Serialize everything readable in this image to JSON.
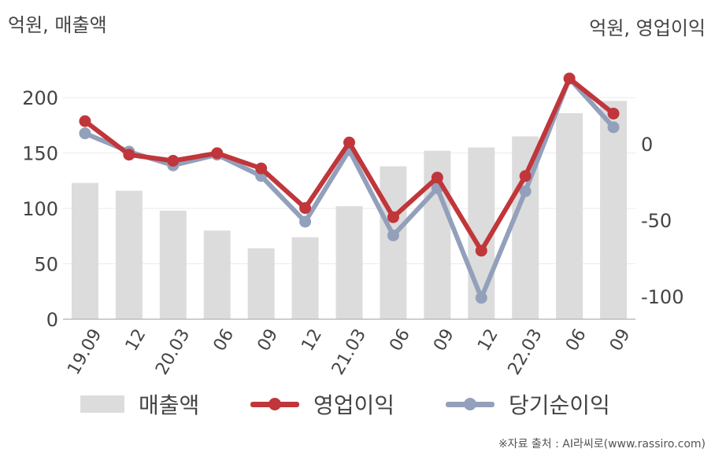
{
  "left_unit": "억원, 매출액",
  "right_unit": "억원, 영업이익",
  "source": "※자료 출처 : AI라씨로(www.rassiro.com)",
  "colors": {
    "bar": "#dcdcdc",
    "operating": "#c0363a",
    "net": "#93a0bb"
  },
  "chart_data": {
    "type": "bar",
    "categories": [
      "19.09",
      "12",
      "20.03",
      "06",
      "09",
      "12",
      "21.03",
      "06",
      "09",
      "12",
      "22.03",
      "06",
      "09"
    ],
    "y_left": {
      "ylim": [
        0,
        220
      ],
      "ticks": [
        0,
        50,
        100,
        150,
        200
      ]
    },
    "y_right": {
      "ylim": [
        -115,
        45
      ],
      "ticks": [
        0,
        -50,
        -100
      ]
    },
    "grid": true,
    "legend_position": "bottom",
    "series": [
      {
        "name": "매출액",
        "type": "bar",
        "axis": "left",
        "values": [
          123,
          116,
          98,
          80,
          64,
          74,
          102,
          138,
          152,
          155,
          165,
          186,
          197
        ]
      },
      {
        "name": "영업이익",
        "type": "line",
        "axis": "right",
        "values": [
          15,
          -7,
          -11,
          -6,
          -16,
          -42,
          1,
          -48,
          -22,
          -70,
          -21,
          43,
          20
        ]
      },
      {
        "name": "당기순이익",
        "type": "line",
        "axis": "right",
        "values": [
          7,
          -5,
          -14,
          -7,
          -21,
          -51,
          -4,
          -60,
          -29,
          -101,
          -31,
          43,
          11
        ]
      }
    ]
  }
}
